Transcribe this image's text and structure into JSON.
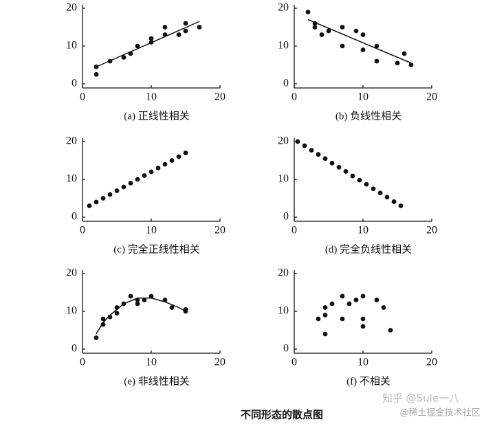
{
  "chart_data": [
    {
      "type": "scatter",
      "title": "(a) 正线性相关",
      "xlim": [
        0,
        20
      ],
      "ylim": [
        0,
        20
      ],
      "xticks": [
        0,
        10,
        20
      ],
      "yticks": [
        0,
        10,
        20
      ],
      "color": "#111111",
      "x": [
        2,
        2,
        4,
        6,
        7,
        8,
        10,
        10,
        12,
        12,
        14,
        15,
        15,
        17
      ],
      "y": [
        2.5,
        4.5,
        6,
        7,
        8,
        10,
        11,
        12,
        13,
        15,
        13,
        14,
        16,
        15
      ],
      "fit": {
        "x": [
          2,
          17
        ],
        "y": [
          4.5,
          16.5
        ]
      }
    },
    {
      "type": "scatter",
      "title": "(b) 负线性相关",
      "xlim": [
        0,
        20
      ],
      "ylim": [
        0,
        20
      ],
      "xticks": [
        0,
        10,
        20
      ],
      "yticks": [
        0,
        10,
        20
      ],
      "color": "#111111",
      "x": [
        2,
        3,
        3,
        4,
        5,
        7,
        7,
        9,
        10,
        10,
        12,
        12,
        15,
        16,
        17
      ],
      "y": [
        19,
        16,
        15,
        13,
        14,
        15,
        10,
        14,
        9,
        13,
        10,
        6,
        5.5,
        8,
        5
      ],
      "fit": {
        "x": [
          2,
          17
        ],
        "y": [
          17,
          5.5
        ]
      }
    },
    {
      "type": "scatter",
      "title": "(c) 完全正线性相关",
      "xlim": [
        0,
        20
      ],
      "ylim": [
        0,
        20
      ],
      "xticks": [
        0,
        10,
        20
      ],
      "yticks": [
        0,
        10,
        20
      ],
      "color": "#111111",
      "x": [
        1,
        2,
        3,
        4,
        5,
        6,
        7,
        8,
        9,
        10,
        11,
        12,
        13,
        14,
        15
      ],
      "y": [
        3,
        4,
        5,
        6,
        7,
        8,
        9,
        10,
        11,
        12,
        13,
        14,
        15,
        16,
        17
      ]
    },
    {
      "type": "scatter",
      "title": "(d) 完全负线性相关",
      "xlim": [
        0,
        20
      ],
      "ylim": [
        0,
        20
      ],
      "xticks": [
        0,
        10,
        20
      ],
      "yticks": [
        0,
        10,
        20
      ],
      "color": "#111111",
      "x": [
        0.5,
        1.5,
        2.5,
        3.5,
        4.5,
        5.5,
        6.5,
        7.5,
        8.5,
        9.5,
        10.5,
        11.5,
        12.5,
        13.5,
        14.5,
        15.5
      ],
      "y": [
        20,
        18.9,
        17.7,
        16.6,
        15.5,
        14.3,
        13.2,
        12.1,
        10.9,
        9.8,
        8.7,
        7.5,
        6.4,
        5.3,
        4.1,
        3
      ]
    },
    {
      "type": "scatter",
      "title": "(e) 非线性相关",
      "xlim": [
        0,
        20
      ],
      "ylim": [
        0,
        20
      ],
      "xticks": [
        0,
        10,
        20
      ],
      "yticks": [
        0,
        10,
        20
      ],
      "color": "#111111",
      "x": [
        2,
        3,
        3,
        4,
        5,
        5,
        6,
        7,
        8,
        8,
        9,
        10,
        12,
        13,
        15,
        15
      ],
      "y": [
        3,
        6.5,
        8,
        8.5,
        9.5,
        11,
        12,
        14,
        12,
        13,
        13,
        14,
        13,
        11,
        10,
        10.5
      ],
      "fit": {
        "x": [
          2,
          3,
          4,
          6,
          8,
          10,
          12,
          14,
          15
        ],
        "y": [
          4,
          7,
          9,
          12,
          13.5,
          13.5,
          12.5,
          11,
          10
        ]
      }
    },
    {
      "type": "scatter",
      "title": "(f) 不相关",
      "xlim": [
        0,
        20
      ],
      "ylim": [
        0,
        20
      ],
      "xticks": [
        0,
        10,
        20
      ],
      "yticks": [
        0,
        10,
        20
      ],
      "color": "#111111",
      "x": [
        3.5,
        4.5,
        4.5,
        4.5,
        5.5,
        7,
        7,
        8,
        9,
        10,
        10,
        10,
        12,
        13,
        14
      ],
      "y": [
        8,
        11,
        9,
        4,
        12,
        14,
        8,
        12,
        13,
        14,
        8,
        6,
        13,
        11,
        5
      ]
    }
  ],
  "caption": "不同形态的散点图",
  "watermark": [
    "知乎 @Sule一八",
    "@稀土掘金技术社区"
  ]
}
